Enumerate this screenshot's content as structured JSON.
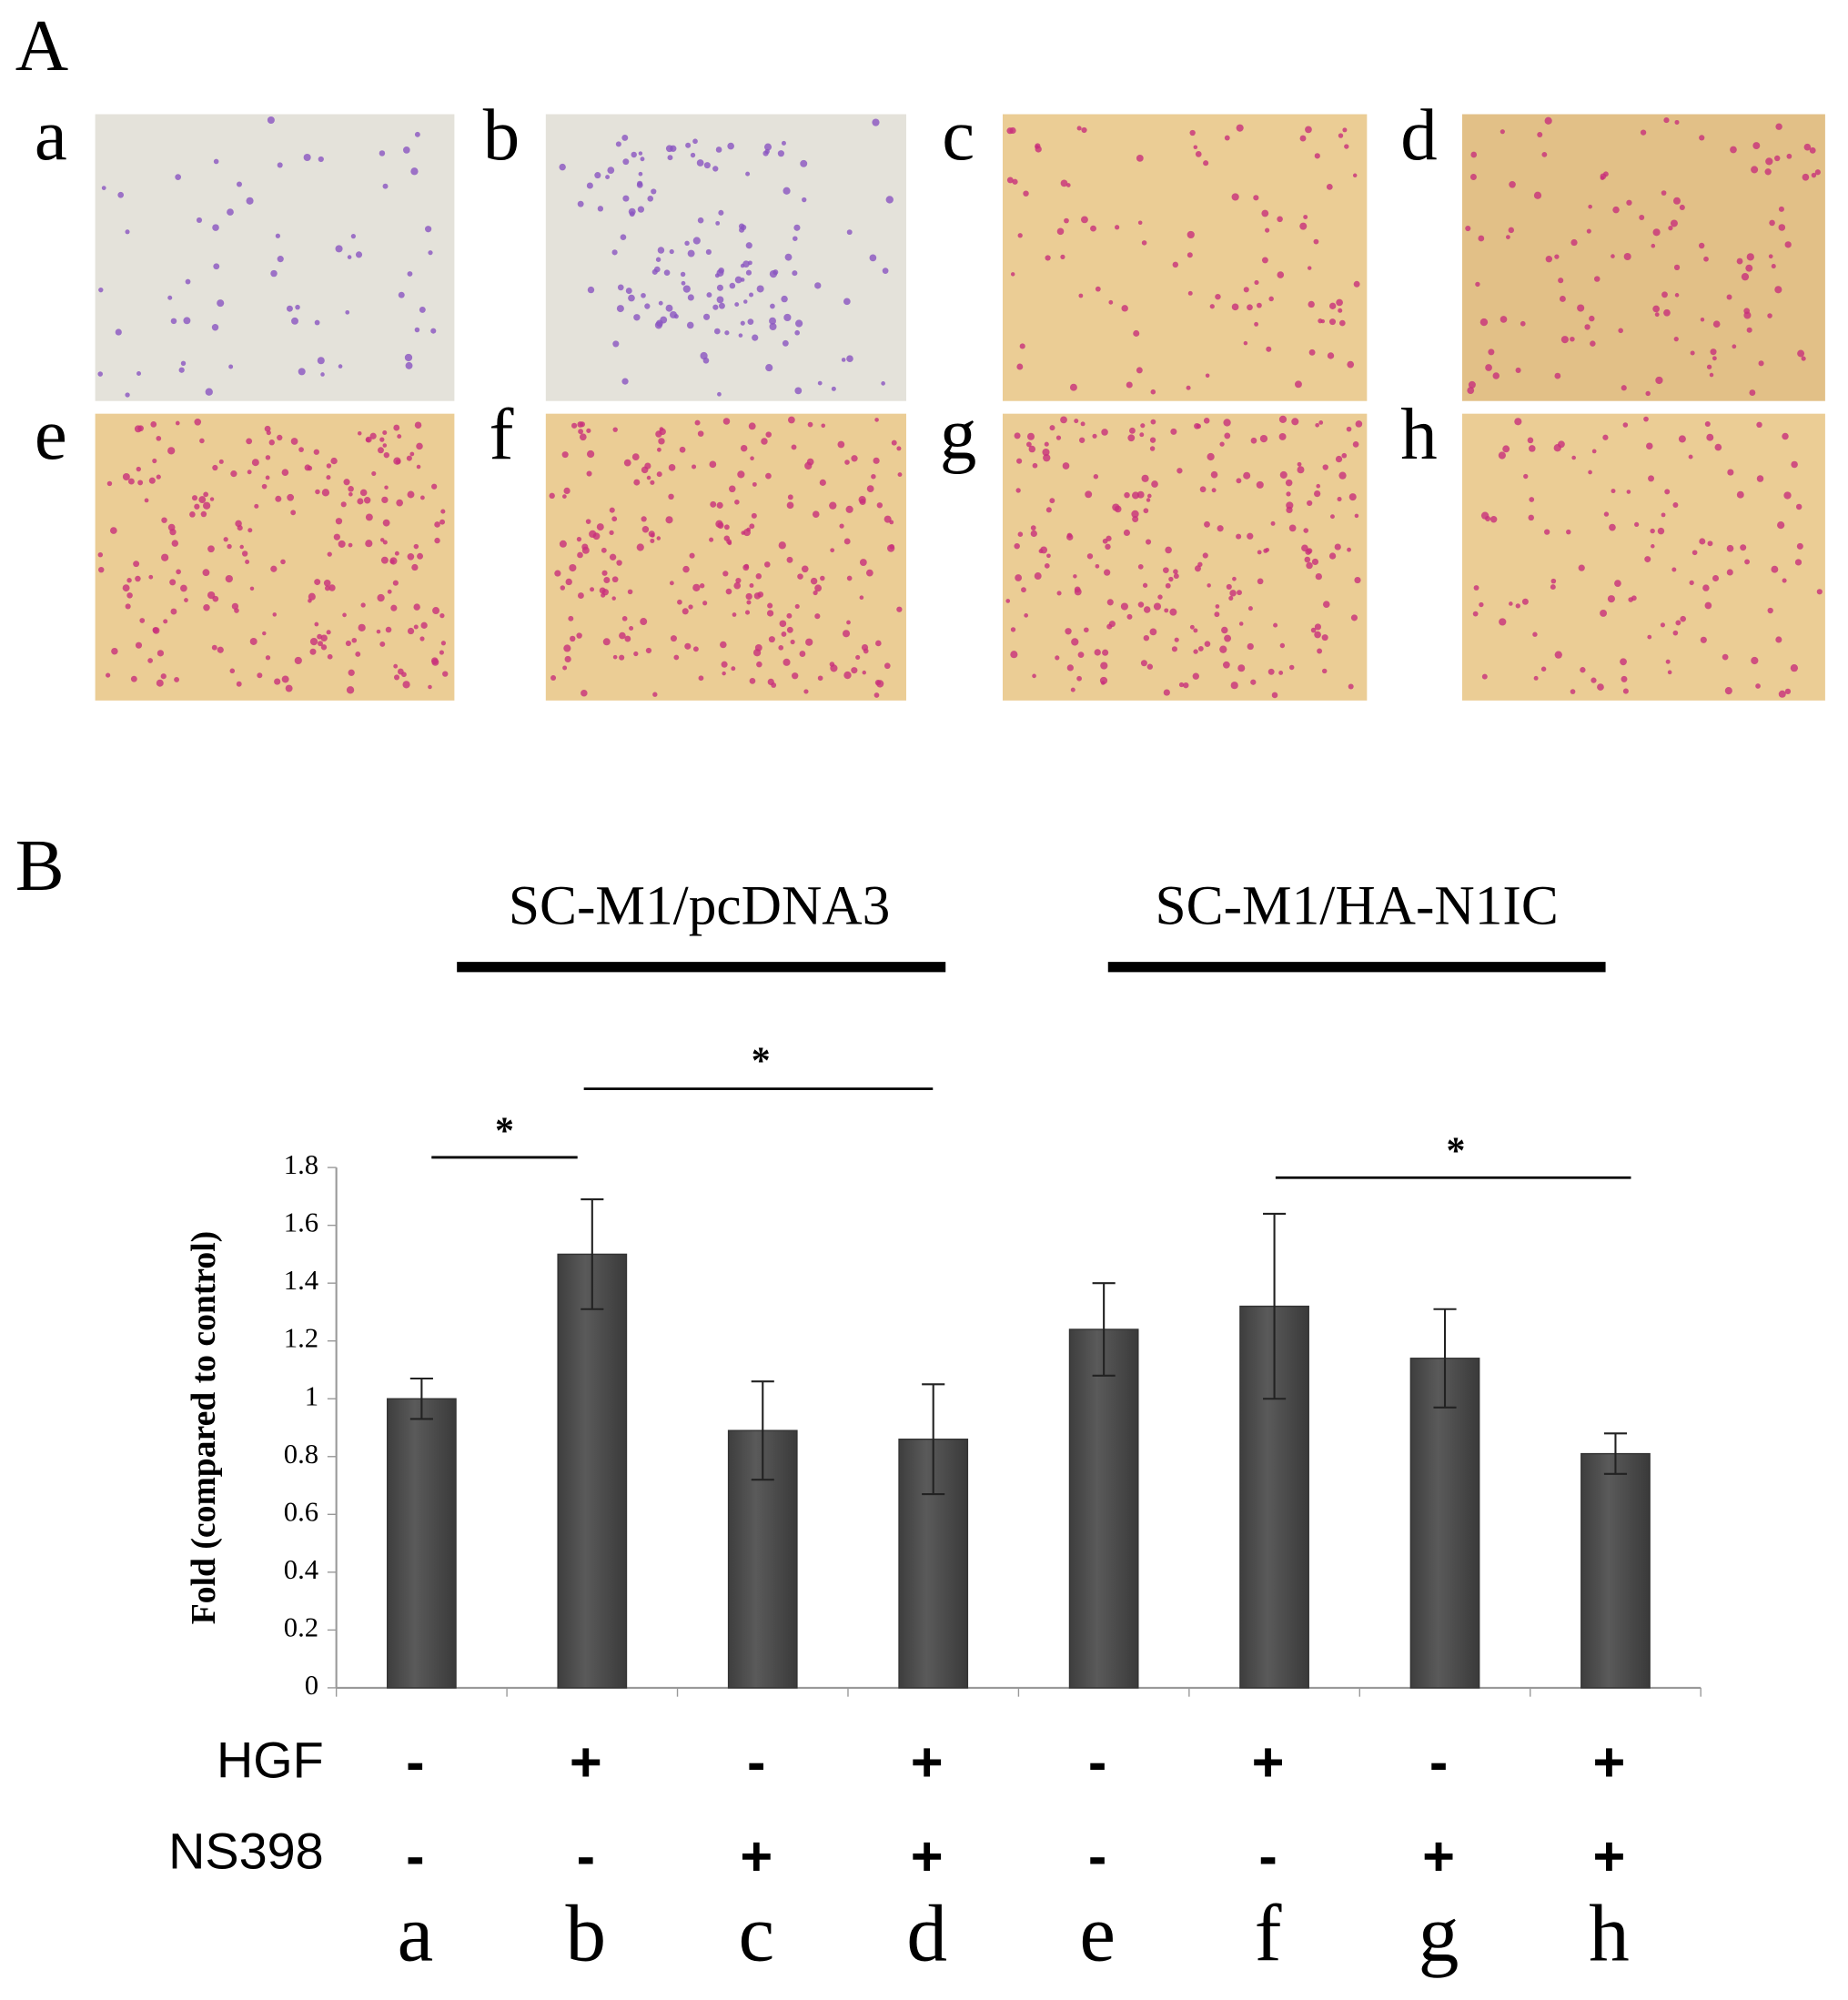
{
  "panel_A": {
    "label": "A",
    "images": [
      "a",
      "b",
      "c",
      "d",
      "e",
      "f",
      "g",
      "h"
    ]
  },
  "chart_data": {
    "type": "bar",
    "panel_label": "B",
    "y_axis_label": "Fold (compared to control)",
    "categories": [
      "a",
      "b",
      "c",
      "d",
      "e",
      "f",
      "g",
      "h"
    ],
    "values": [
      1.0,
      1.5,
      0.89,
      0.86,
      1.24,
      1.32,
      1.14,
      0.81
    ],
    "errors": [
      0.07,
      0.19,
      0.17,
      0.19,
      0.16,
      0.32,
      0.17,
      0.07
    ],
    "color": "#5a5a5a",
    "ylim": [
      0,
      1.8
    ],
    "yticks": [
      0,
      0.2,
      0.4,
      0.6,
      0.8,
      1,
      1.2,
      1.4,
      1.6,
      1.8
    ],
    "groups": [
      "SC-M1/pcDNA3",
      "SC-M1/HA-N1IC"
    ],
    "significance": [
      "*",
      "*",
      "*"
    ],
    "treatments": [
      {
        "name": "HGF",
        "signs": [
          "-",
          "+",
          "-",
          "+",
          "-",
          "+",
          "-",
          "+"
        ]
      },
      {
        "name": "NS398",
        "signs": [
          "-",
          "-",
          "+",
          "+",
          "-",
          "-",
          "+",
          "+"
        ]
      }
    ]
  }
}
